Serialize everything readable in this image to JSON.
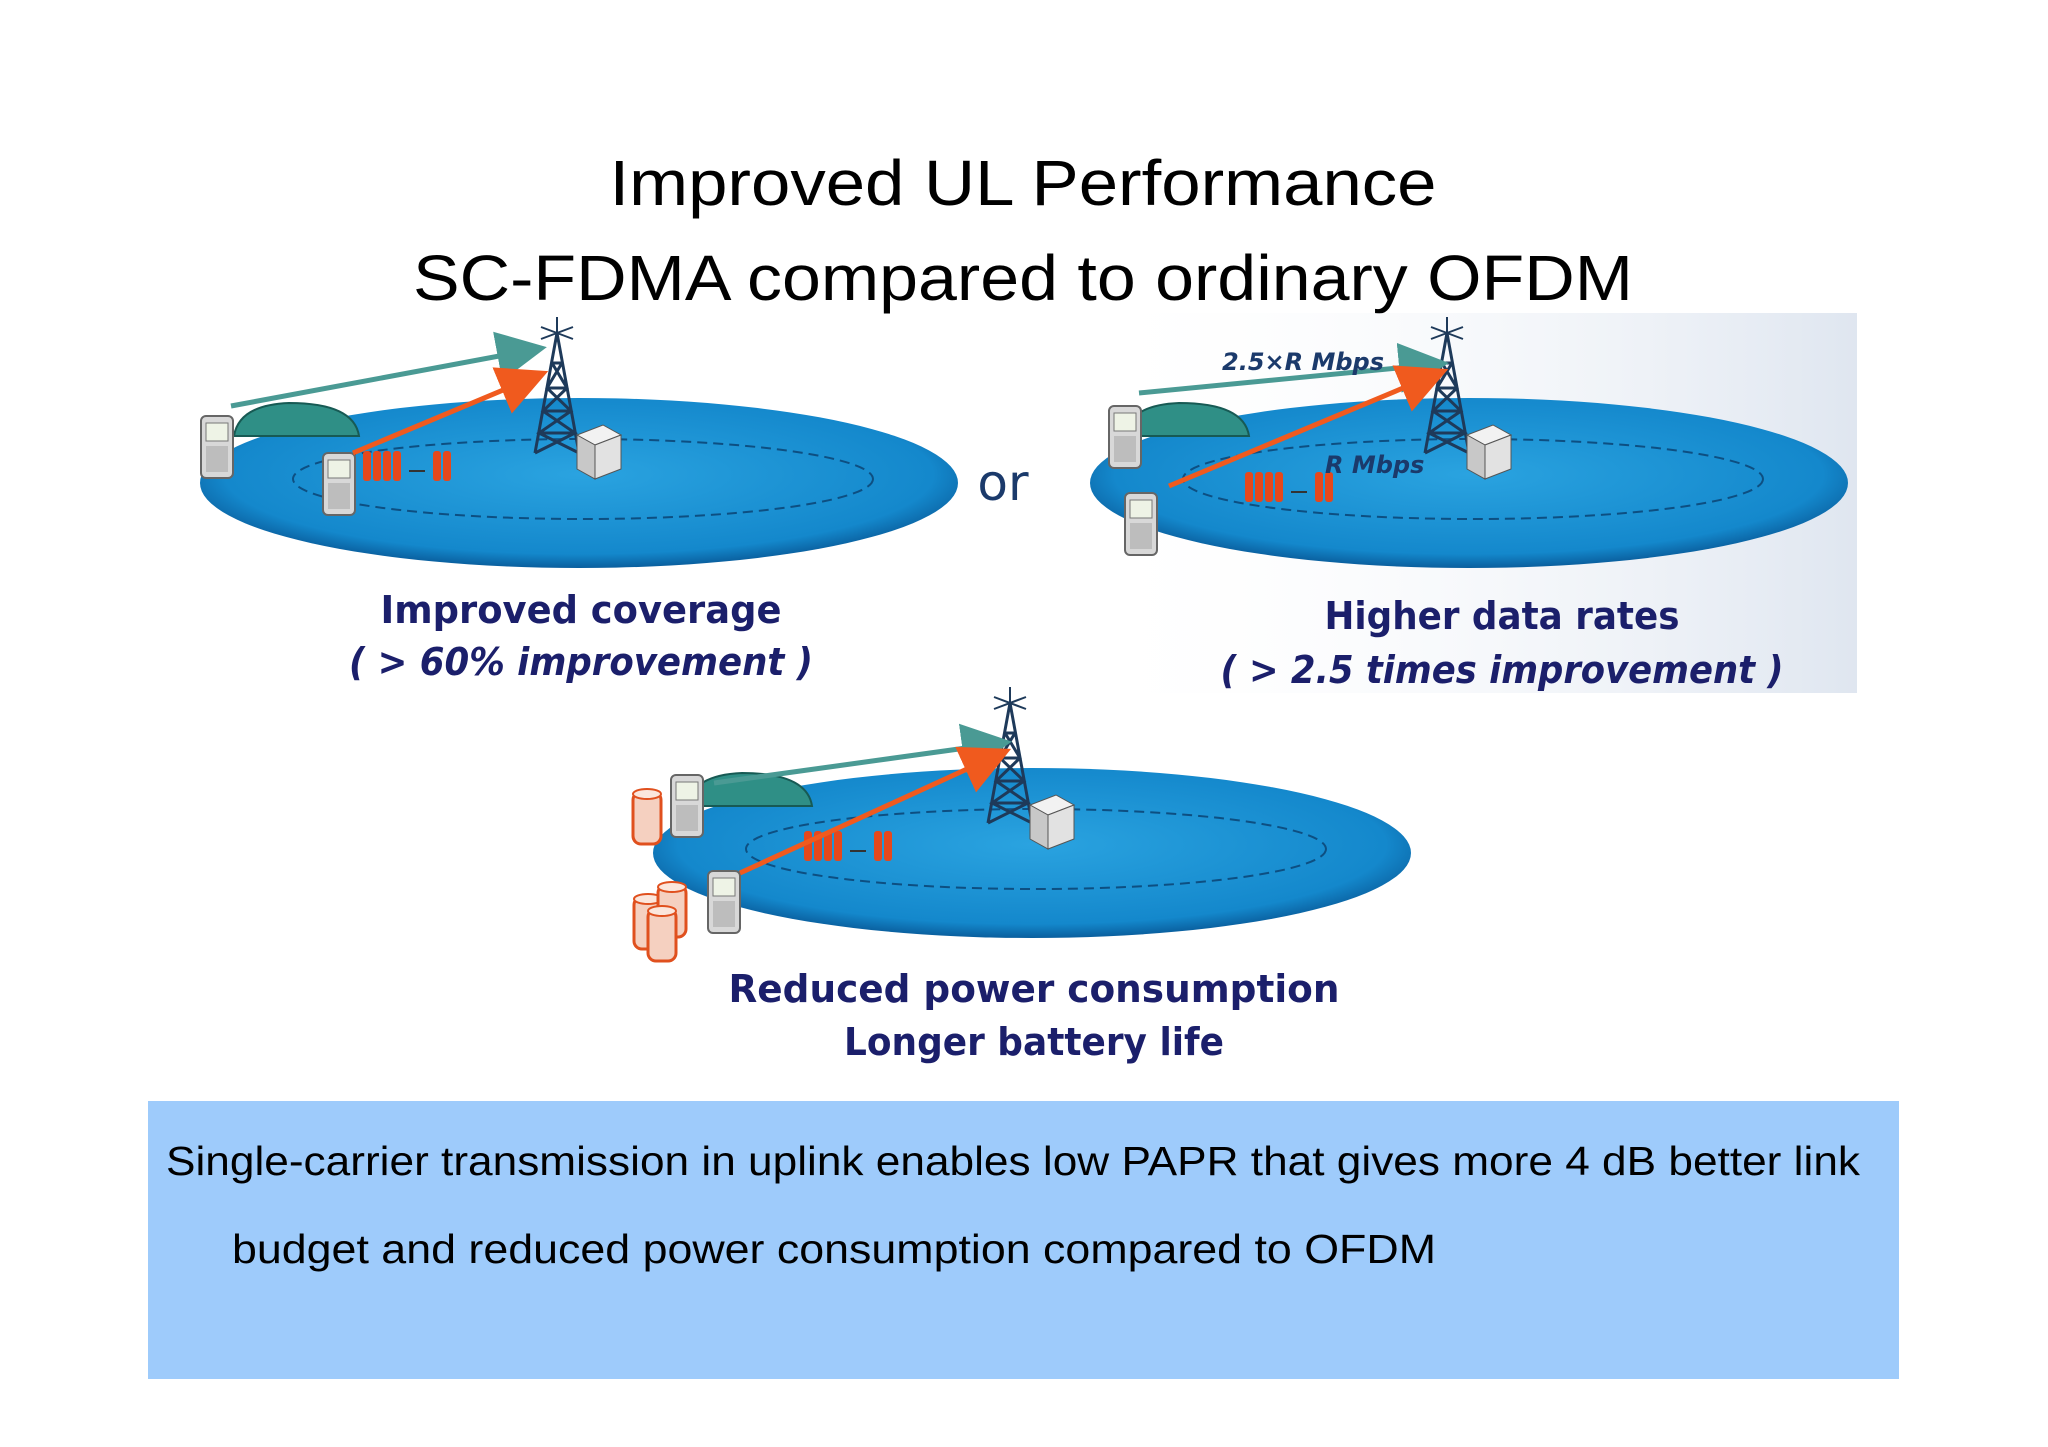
{
  "title": [
    "Improved UL Performance",
    "SC-FDMA compared to ordinary OFDM"
  ],
  "separator": "or",
  "panels": [
    {
      "label": "Improved coverage",
      "detail": "( > 60% improvement )"
    },
    {
      "label": "Higher data rates",
      "detail": "( > 2.5 times improvement )",
      "rate_high": "2.5×R Mbps",
      "rate_low": "R Mbps"
    },
    {
      "label": "Reduced power consumption",
      "detail": "Longer battery life"
    }
  ],
  "note": {
    "lines": [
      "Single-carrier transmission in uplink enables low PAPR that gives more 4 dB better link",
      "budget and reduced power consumption compared to OFDM"
    ]
  }
}
